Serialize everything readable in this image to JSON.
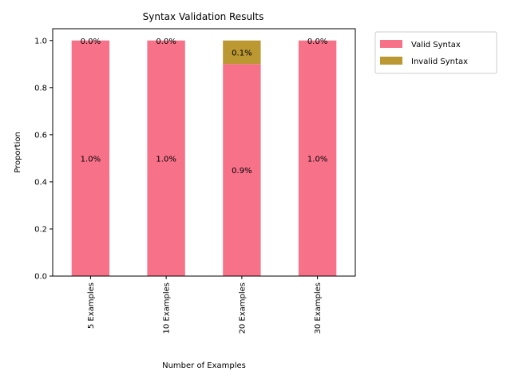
{
  "chart_data": {
    "type": "bar",
    "stacked": true,
    "title": "Syntax Validation Results",
    "xlabel": "Number of Examples",
    "ylabel": "Proportion",
    "categories": [
      "5 Examples",
      "10 Examples",
      "20 Examples",
      "30 Examples"
    ],
    "series": [
      {
        "name": "Valid Syntax",
        "color": "#f77189",
        "values": [
          1.0,
          1.0,
          0.9,
          1.0
        ],
        "labels": [
          "1.0%",
          "1.0%",
          "0.9%",
          "1.0%"
        ]
      },
      {
        "name": "Invalid Syntax",
        "color": "#bb9832",
        "values": [
          0.0,
          0.0,
          0.1,
          0.0
        ],
        "labels": [
          "0.0%",
          "0.0%",
          "0.1%",
          "0.0%"
        ]
      }
    ],
    "ylim": [
      0,
      1.05
    ],
    "yticks": [
      0.0,
      0.2,
      0.4,
      0.6,
      0.8,
      1.0
    ],
    "ytick_labels": [
      "0.0",
      "0.2",
      "0.4",
      "0.6",
      "0.8",
      "1.0"
    ],
    "grid": false,
    "legend_position": "outside-top-right"
  }
}
